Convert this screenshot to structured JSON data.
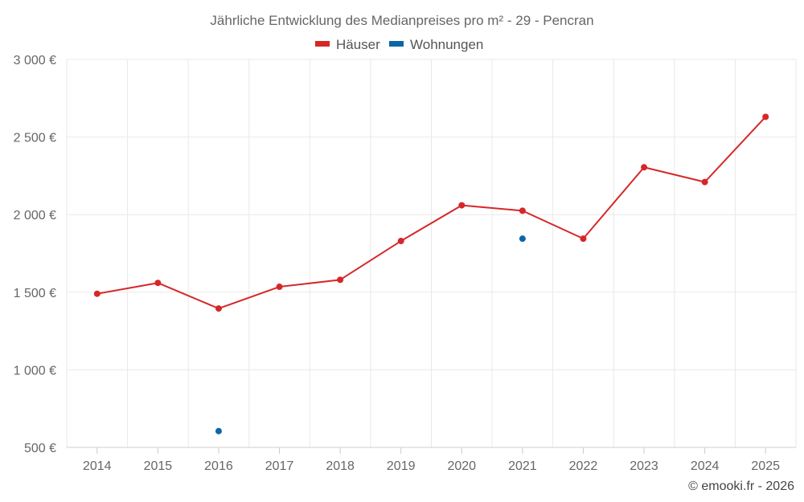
{
  "chart_data": {
    "type": "line",
    "title": "Jährliche Entwicklung des Medianpreises pro m² - 29 - Pencran",
    "categories": [
      "2014",
      "2015",
      "2016",
      "2017",
      "2018",
      "2019",
      "2020",
      "2021",
      "2022",
      "2023",
      "2024",
      "2025"
    ],
    "series": [
      {
        "name": "Häuser",
        "color": "#d62728",
        "values": [
          1490,
          1560,
          1395,
          1535,
          1580,
          1830,
          2060,
          2025,
          1845,
          2305,
          2210,
          2630
        ]
      },
      {
        "name": "Wohnungen",
        "color": "#0b66a8",
        "values": [
          null,
          null,
          605,
          null,
          null,
          null,
          null,
          1845,
          null,
          null,
          null,
          null
        ]
      }
    ],
    "ylim": [
      500,
      3000
    ],
    "yticks": [
      500,
      1000,
      1500,
      2000,
      2500,
      3000
    ],
    "ytick_labels": [
      "500 €",
      "1 000 €",
      "1 500 €",
      "2 000 €",
      "2 500 €",
      "3 000 €"
    ],
    "grid": true,
    "legend_position": "top-center",
    "xlabel": "",
    "ylabel": ""
  },
  "credit": "© emooki.fr - 2026"
}
